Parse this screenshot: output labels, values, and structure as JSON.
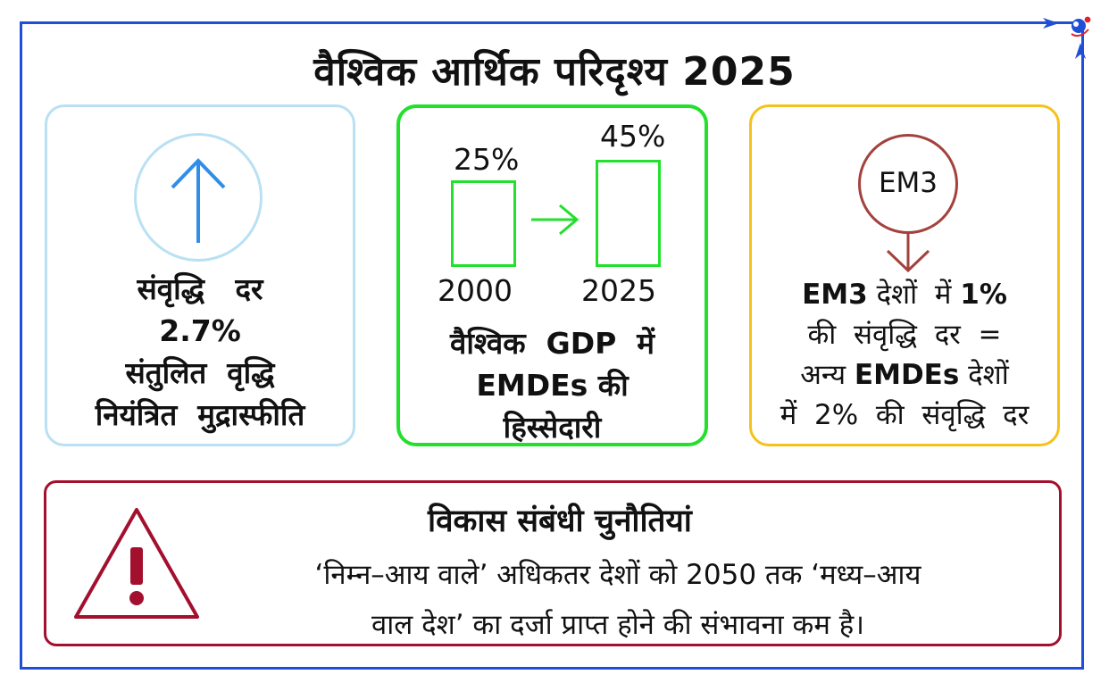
{
  "title": "वैश्विक आर्थिक परिदृश्य 2025",
  "colors": {
    "frame": "#1f4fd6",
    "card_growth": "#b9e1f3",
    "card_share": "#22e02c",
    "card_em3": "#f5c21b",
    "em3_accent": "#a3423d",
    "challenge": "#a3102e",
    "arrow_blue": "#2f8ee8"
  },
  "icons": {
    "growth": "up-arrow-icon",
    "em3": "down-arrow-icon",
    "challenge": "warning-triangle-icon"
  },
  "growth_card": {
    "lines": [
      "संवृद्धि   दर",
      "2.7%",
      "संतुलित  वृद्धि",
      "नियंत्रित  मुद्रास्फीति"
    ]
  },
  "gdp_share_card": {
    "bars": [
      {
        "year": "2000",
        "value_label": "25%",
        "value": 25
      },
      {
        "year": "2025",
        "value_label": "45%",
        "value": 45
      }
    ],
    "caption_lines": [
      "वैश्विक  GDP  में",
      "EMDEs की",
      "हिस्सेदारी"
    ]
  },
  "em3_card": {
    "badge": "EM3",
    "line1_bold": "EM3",
    "line1_mid": " देशों  में ",
    "line1_bold2": "1%",
    "line2": "की  संवृद्धि  दर  =",
    "line3_pre": "अन्य ",
    "line3_bold": "EMDEs",
    "line3_post": " देशों",
    "line4": "में  2%  की  संवृद्धि  दर"
  },
  "challenge": {
    "title": "विकास संबंधी चुनौतियां",
    "line1": "‘निम्न–आय वाले’ अधिकतर देशों को 2050 तक ‘मध्य–आय",
    "line2": "वाल देश’ का दर्जा प्राप्त होने की संभावना कम है।"
  }
}
